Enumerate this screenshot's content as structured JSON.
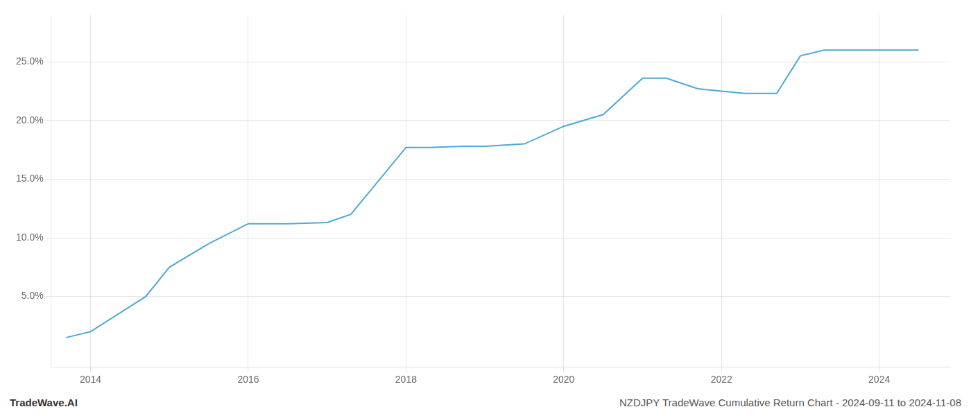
{
  "chart_data": {
    "type": "line",
    "x": [
      2013.69,
      2014.0,
      2014.7,
      2015.0,
      2015.5,
      2016.0,
      2016.5,
      2017.0,
      2017.3,
      2018.0,
      2018.3,
      2018.7,
      2019.0,
      2019.5,
      2020.0,
      2020.5,
      2021.0,
      2021.3,
      2021.7,
      2022.0,
      2022.3,
      2022.7,
      2023.0,
      2023.3,
      2024.0,
      2024.3,
      2024.5
    ],
    "values": [
      1.5,
      2.0,
      5.0,
      7.5,
      9.5,
      11.2,
      11.2,
      11.3,
      12.0,
      17.7,
      17.7,
      17.8,
      17.8,
      18.0,
      19.5,
      20.5,
      23.6,
      23.6,
      22.7,
      22.5,
      22.3,
      22.3,
      25.5,
      26.0,
      26.0,
      26.0,
      26.0
    ],
    "color": "#4fa8d5",
    "xlim": [
      2013.5,
      2024.9
    ],
    "xticks": [
      2014,
      2016,
      2018,
      2020,
      2022,
      2024
    ],
    "ylim": [
      -1.0,
      29.0
    ],
    "yticks": [
      {
        "value": 5.0,
        "label": "5.0%"
      },
      {
        "value": 10.0,
        "label": "10.0%"
      },
      {
        "value": 15.0,
        "label": "15.0%"
      },
      {
        "value": 20.0,
        "label": "20.0%"
      },
      {
        "value": 25.0,
        "label": "25.0%"
      }
    ],
    "grid": true,
    "annotations": [
      {
        "text": "TradeWave.AI"
      },
      {
        "text": "NZDJPY TradeWave Cumulative Return Chart - 2024-09-11 to 2024-11-08"
      }
    ]
  }
}
